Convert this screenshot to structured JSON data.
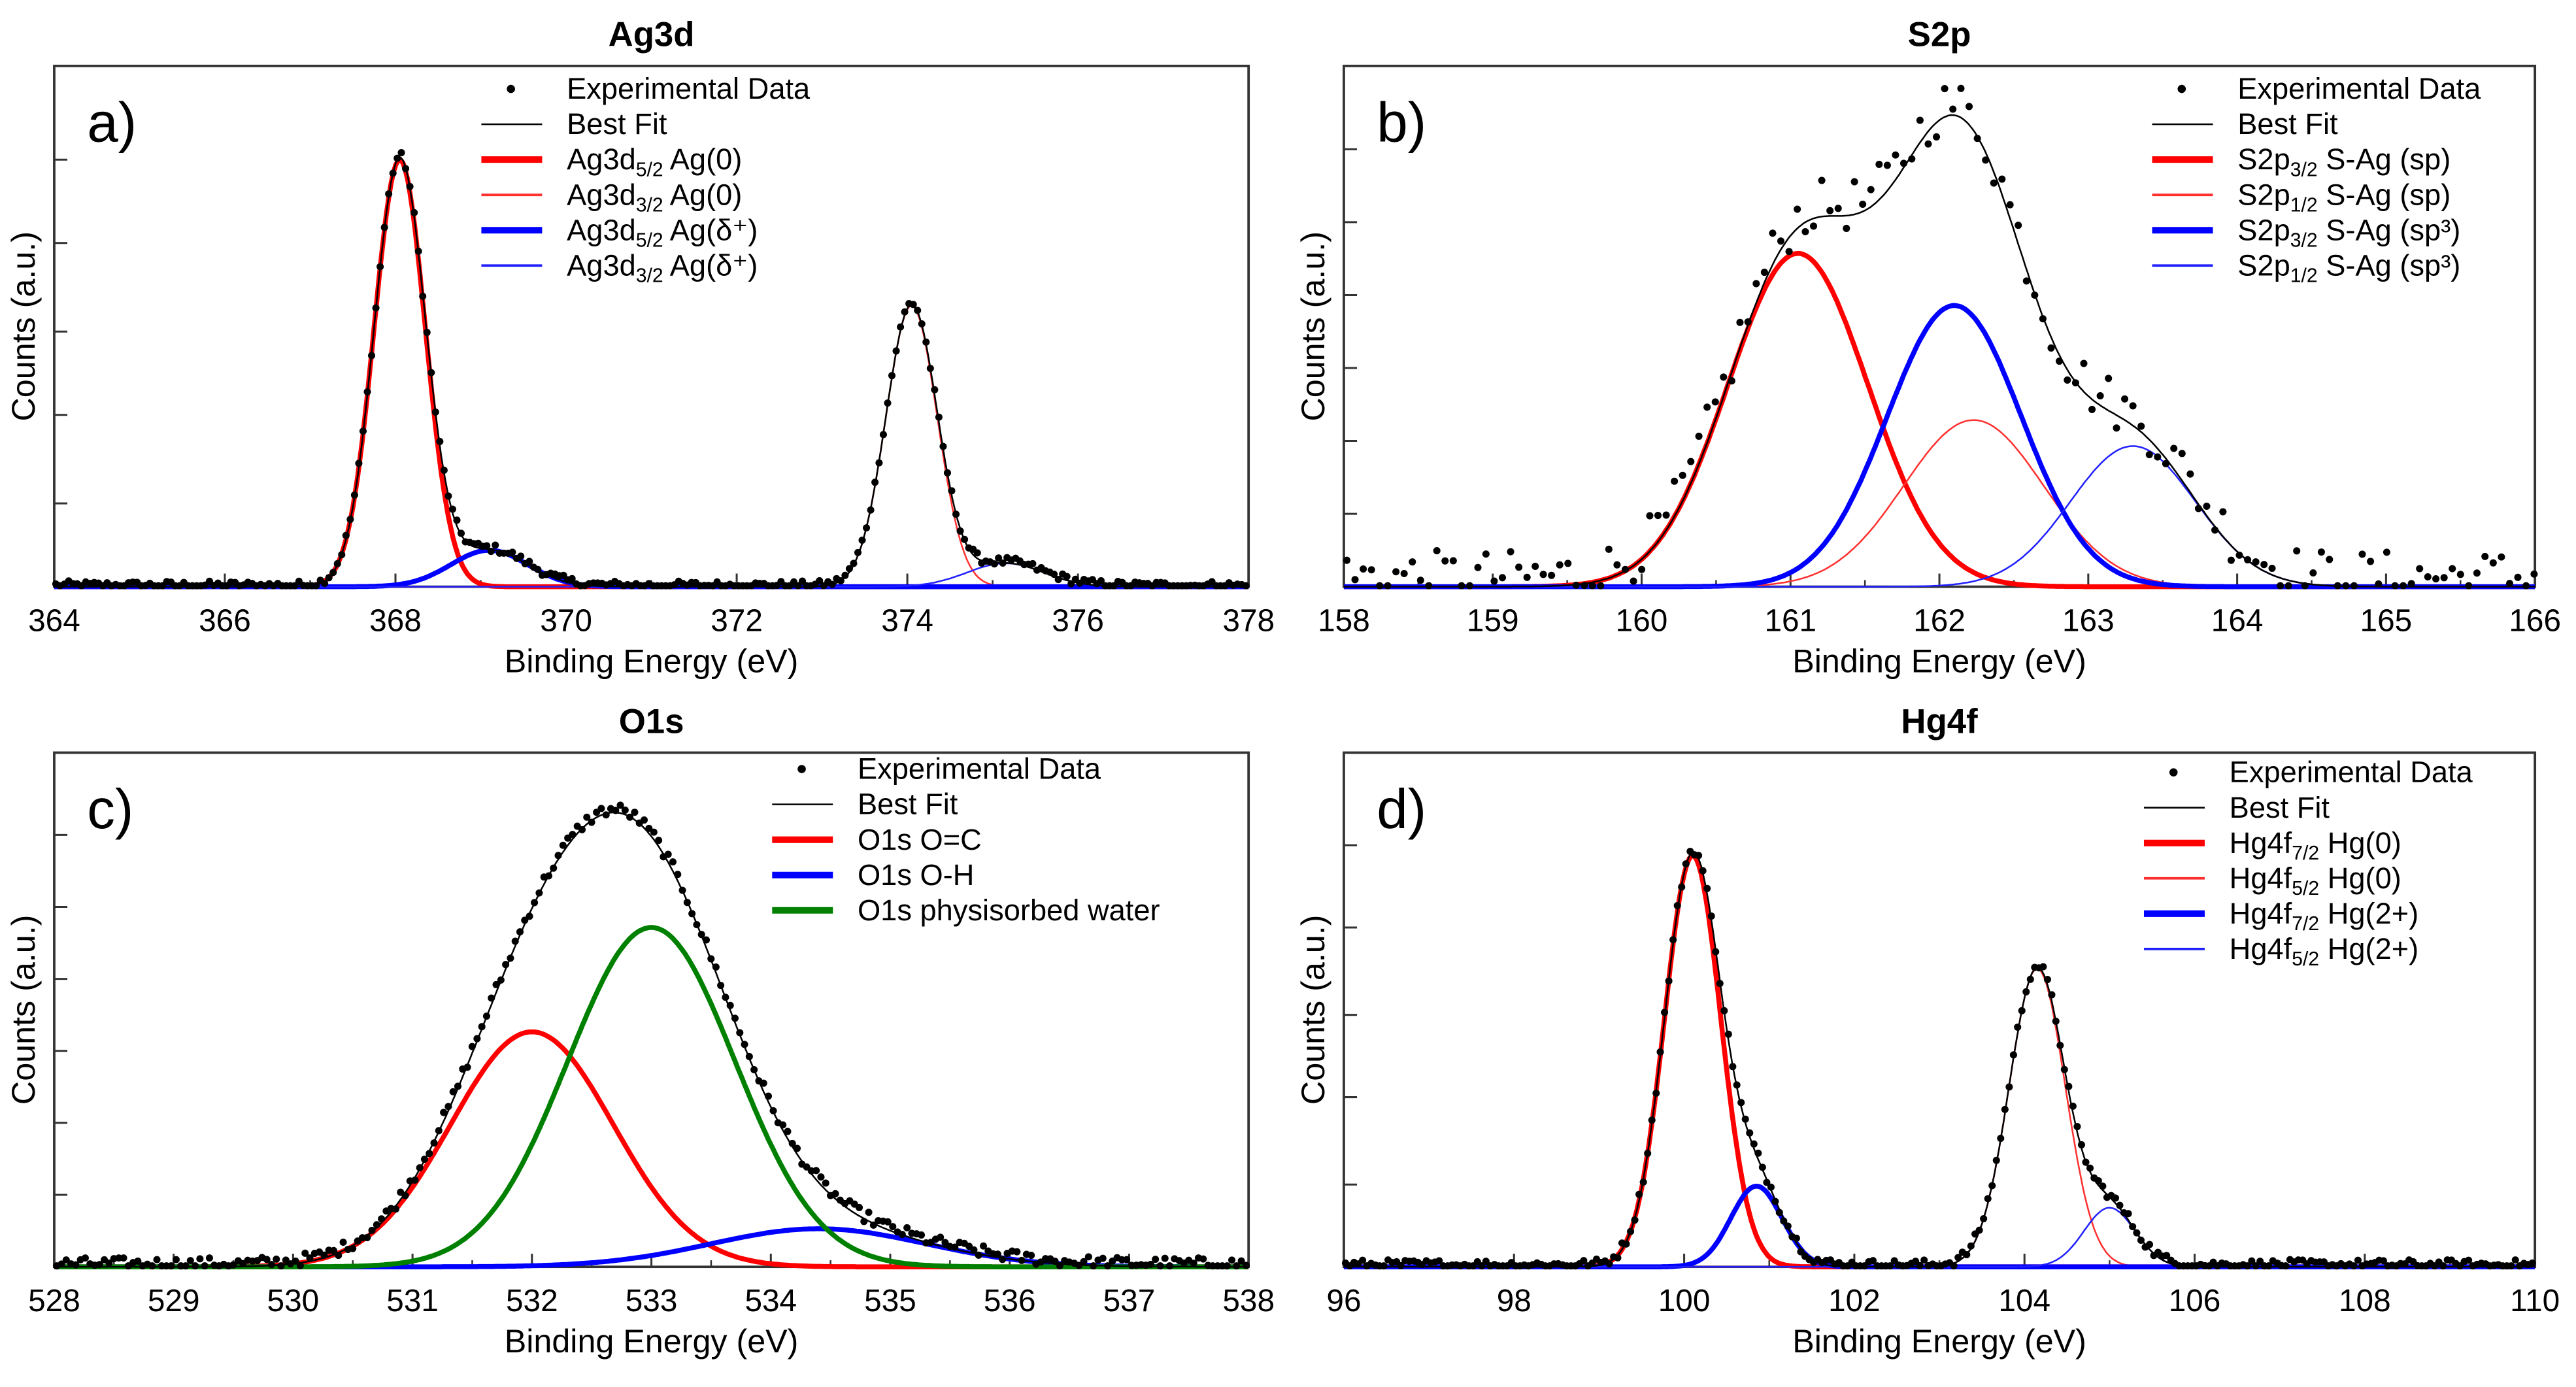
{
  "chart_data": [
    {
      "type": "line",
      "panel_label": "a)",
      "title": "Ag3d",
      "xlabel": "Binding Energy (eV)",
      "ylabel": "Counts (a.u.)",
      "xlim": [
        364,
        378
      ],
      "ylim": [
        0,
        1
      ],
      "xticks": [
        364,
        366,
        368,
        370,
        372,
        374,
        376,
        378
      ],
      "yticks_unlabeled": [
        0.16,
        0.33,
        0.49,
        0.66,
        0.82
      ],
      "experimental_data": {
        "name": "Experimental Data",
        "step_ev": 0.05,
        "noise": 0.008,
        "offset": 0.003
      },
      "best_fit": {
        "name": "Best Fit",
        "color": "#000000"
      },
      "components": [
        {
          "base": "Ag3d",
          "sub": "5/2",
          "rest": " Ag(0)",
          "center": 368.05,
          "sigma": 0.3,
          "amplitude": 0.82,
          "color": "#ff0000",
          "style": "thick"
        },
        {
          "base": "Ag3d",
          "sub": "3/2",
          "rest": " Ag(0)",
          "center": 374.05,
          "sigma": 0.3,
          "amplitude": 0.54,
          "color": "#ff3030",
          "style": "thin"
        },
        {
          "base": "Ag3d",
          "sub": "5/2",
          "rest": " Ag(δ⁺)",
          "center": 369.1,
          "sigma": 0.45,
          "amplitude": 0.07,
          "color": "#0000ff",
          "style": "thick"
        },
        {
          "base": "Ag3d",
          "sub": "3/2",
          "rest": " Ag(δ⁺)",
          "center": 375.15,
          "sigma": 0.45,
          "amplitude": 0.045,
          "color": "#2020ff",
          "style": "thin"
        }
      ]
    },
    {
      "type": "line",
      "panel_label": "b)",
      "title": "S2p",
      "xlabel": "Binding Energy (eV)",
      "ylabel": "Counts (a.u.)",
      "xlim": [
        158,
        166
      ],
      "ylim": [
        0,
        1
      ],
      "xticks": [
        158,
        159,
        160,
        161,
        162,
        163,
        164,
        165,
        166
      ],
      "yticks_unlabeled": [
        0.14,
        0.28,
        0.42,
        0.56,
        0.7,
        0.84
      ],
      "experimental_data": {
        "name": "Experimental Data",
        "step_ev": 0.055,
        "noise": 0.05,
        "offset": 0.02
      },
      "best_fit": {
        "name": "Best Fit",
        "color": "#000000"
      },
      "components": [
        {
          "base": "S2p",
          "sub": "3/2",
          "rest": " S-Ag (sp)",
          "center": 161.05,
          "sigma": 0.47,
          "amplitude": 0.64,
          "color": "#ff0000",
          "style": "thick"
        },
        {
          "base": "S2p",
          "sub": "1/2",
          "rest": " S-Ag (sp)",
          "center": 162.23,
          "sigma": 0.47,
          "amplitude": 0.32,
          "color": "#ff3030",
          "style": "thin"
        },
        {
          "base": "S2p",
          "sub": "3/2",
          "rest": " S-Ag (sp³)",
          "center": 162.1,
          "sigma": 0.45,
          "amplitude": 0.54,
          "color": "#0000ff",
          "style": "thick"
        },
        {
          "base": "S2p",
          "sub": "1/2",
          "rest": " S-Ag (sp³)",
          "center": 163.3,
          "sigma": 0.42,
          "amplitude": 0.27,
          "color": "#2020ff",
          "style": "thin"
        }
      ]
    },
    {
      "type": "line",
      "panel_label": "c)",
      "title": "O1s",
      "xlabel": "Binding Energy (eV)",
      "ylabel": "Counts (a.u.)",
      "xlim": [
        528,
        538
      ],
      "ylim": [
        0,
        1
      ],
      "xticks": [
        528,
        529,
        530,
        531,
        532,
        533,
        534,
        535,
        536,
        537,
        538
      ],
      "yticks_unlabeled": [
        0.14,
        0.28,
        0.42,
        0.56,
        0.7,
        0.84
      ],
      "experimental_data": {
        "name": "Experimental Data",
        "step_ev": 0.04,
        "noise": 0.012,
        "offset": 0.006
      },
      "best_fit": {
        "name": "Best Fit",
        "color": "#000000"
      },
      "components": [
        {
          "base": "O1s O=C",
          "sub": "",
          "rest": "",
          "center": 532.0,
          "sigma": 0.68,
          "amplitude": 0.457,
          "color": "#ff0000",
          "style": "thick"
        },
        {
          "base": "O1s O-H",
          "sub": "",
          "rest": "",
          "center": 534.4,
          "sigma": 0.9,
          "amplitude": 0.074,
          "color": "#0000ff",
          "style": "thick"
        },
        {
          "base": "O1s physisorbed water",
          "sub": "",
          "rest": "",
          "center": 533.0,
          "sigma": 0.7,
          "amplitude": 0.66,
          "color": "#008000",
          "style": "thick"
        }
      ]
    },
    {
      "type": "line",
      "panel_label": "d)",
      "title": "Hg4f",
      "xlabel": "Binding Energy (eV)",
      "ylabel": "Counts (a.u.)",
      "xlim": [
        96,
        110
      ],
      "ylim": [
        0,
        1
      ],
      "xticks": [
        96,
        98,
        100,
        102,
        104,
        106,
        108,
        110
      ],
      "yticks_unlabeled": [
        0.16,
        0.33,
        0.49,
        0.66,
        0.82
      ],
      "experimental_data": {
        "name": "Experimental Data",
        "step_ev": 0.05,
        "noise": 0.01,
        "offset": 0.004
      },
      "best_fit": {
        "name": "Best Fit",
        "color": "#000000"
      },
      "components": [
        {
          "base": "Hg4f",
          "sub": "7/2",
          "rest": " Hg(0)",
          "center": 100.1,
          "sigma": 0.33,
          "amplitude": 0.8,
          "color": "#ff0000",
          "style": "thick"
        },
        {
          "base": "Hg4f",
          "sub": "5/2",
          "rest": " Hg(0)",
          "center": 104.15,
          "sigma": 0.33,
          "amplitude": 0.58,
          "color": "#ff3030",
          "style": "thin"
        },
        {
          "base": "Hg4f",
          "sub": "7/2",
          "rest": " Hg(2+)",
          "center": 100.85,
          "sigma": 0.3,
          "amplitude": 0.157,
          "color": "#0000ff",
          "style": "thick"
        },
        {
          "base": "Hg4f",
          "sub": "5/2",
          "rest": " Hg(2+)",
          "center": 105.0,
          "sigma": 0.3,
          "amplitude": 0.115,
          "color": "#2020ff",
          "style": "thin"
        }
      ]
    }
  ]
}
